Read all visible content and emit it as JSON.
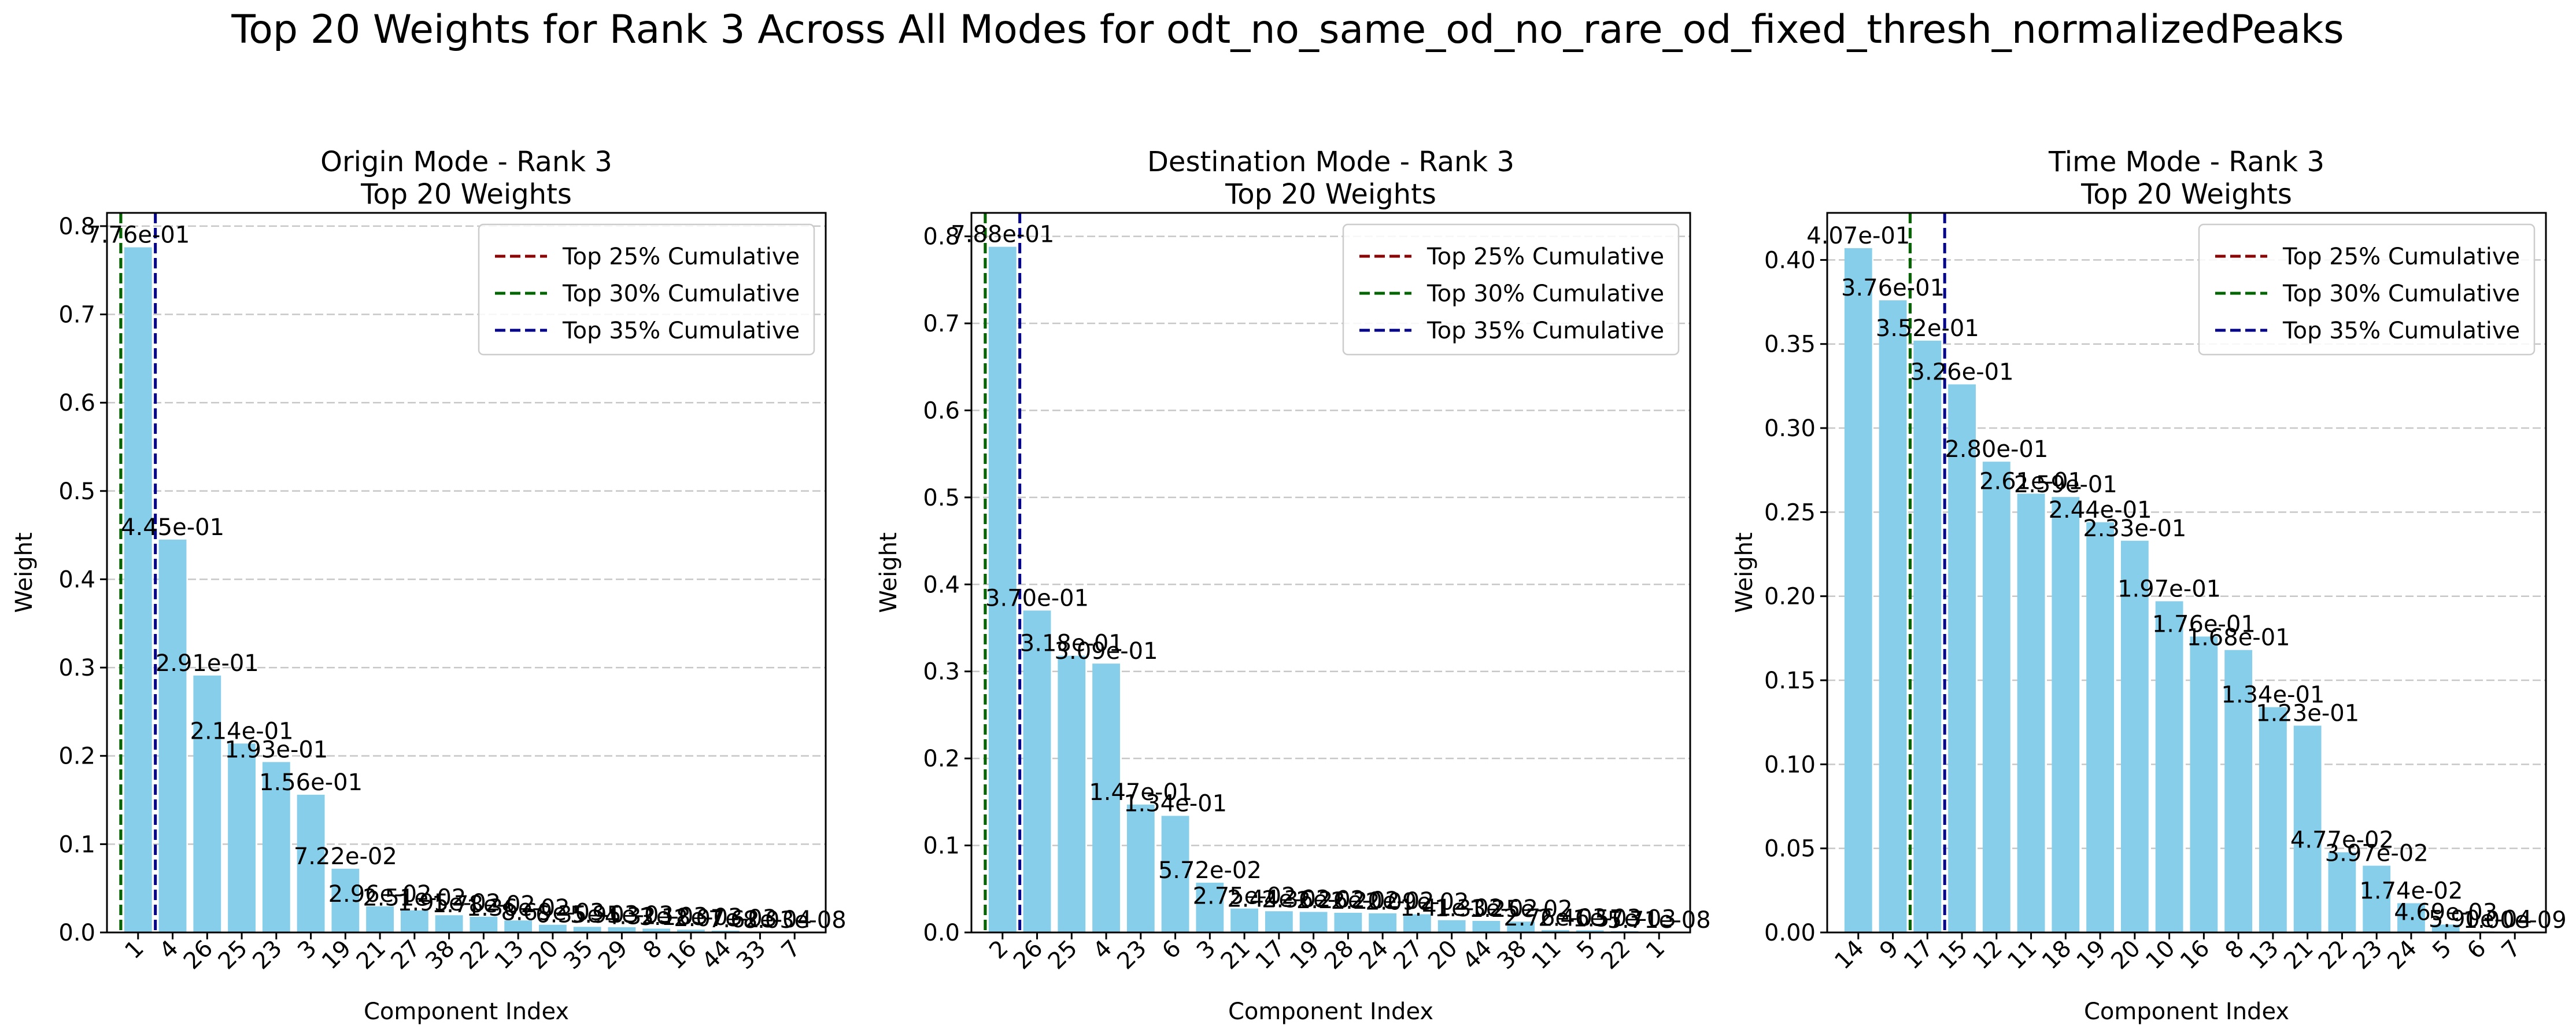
{
  "figure": {
    "suptitle": "Top 20 Weights for Rank 3 Across All Modes for odt_no_same_od_no_rare_od_fixed_thresh_normalizedPeaks"
  },
  "colors": {
    "bar": "#87CEEB",
    "grid": "#b0b0b0",
    "threshold_25": "#8b0000",
    "threshold_30": "#006400",
    "threshold_35": "#00008b"
  },
  "chart_data": [
    {
      "type": "bar",
      "title": "Origin Mode - Rank 3",
      "subtitle": "Top 20 Weights",
      "xlabel": "Component Index",
      "ylabel": "Weight",
      "categories": [
        "1",
        "4",
        "26",
        "25",
        "23",
        "3",
        "19",
        "21",
        "27",
        "38",
        "22",
        "13",
        "20",
        "35",
        "29",
        "8",
        "16",
        "44",
        "33",
        "7"
      ],
      "values": [
        0.776,
        0.445,
        0.291,
        0.214,
        0.193,
        0.156,
        0.0722,
        0.0296,
        0.0251,
        0.0195,
        0.0178,
        0.0136,
        0.00869,
        0.00635,
        0.00595,
        0.00432,
        0.00318,
        0.00207,
        0.000762,
        8.03e-08
      ],
      "value_labels": [
        "7.76e-01",
        "4.45e-01",
        "2.91e-01",
        "2.14e-01",
        "1.93e-01",
        "1.56e-01",
        "7.22e-02",
        "2.96e-02",
        "2.51e-02",
        "1.95e-02",
        "1.78e-02",
        "1.36e-02",
        "8.69e-03",
        "6.35e-03",
        "5.95e-03",
        "4.32e-03",
        "3.18e-03",
        "2.07e-03",
        "7.62e-04",
        "8.03e-08"
      ],
      "ylim": [
        0,
        0.815
      ],
      "yticks": [
        0.0,
        0.1,
        0.2,
        0.3,
        0.4,
        0.5,
        0.6,
        0.7,
        0.8
      ],
      "ytick_labels": [
        "0.0",
        "0.1",
        "0.2",
        "0.3",
        "0.4",
        "0.5",
        "0.6",
        "0.7",
        "0.8"
      ],
      "threshold_lines": [
        {
          "label": "Top 25% Cumulative",
          "index": -0.5,
          "color_key": "threshold_25"
        },
        {
          "label": "Top 30% Cumulative",
          "index": -0.5,
          "color_key": "threshold_30"
        },
        {
          "label": "Top 35% Cumulative",
          "index": 0.5,
          "color_key": "threshold_35"
        }
      ],
      "grid": "y",
      "legend": "top-right"
    },
    {
      "type": "bar",
      "title": "Destination Mode - Rank 3",
      "subtitle": "Top 20 Weights",
      "xlabel": "Component Index",
      "ylabel": "Weight",
      "categories": [
        "2",
        "26",
        "25",
        "4",
        "23",
        "6",
        "3",
        "21",
        "17",
        "19",
        "28",
        "24",
        "27",
        "20",
        "44",
        "38",
        "11",
        "5",
        "22",
        "1"
      ],
      "values": [
        0.788,
        0.37,
        0.318,
        0.309,
        0.147,
        0.134,
        0.0572,
        0.0275,
        0.0244,
        0.0236,
        0.0226,
        0.022,
        0.0209,
        0.0141,
        0.0133,
        0.0125,
        0.00276,
        0.00246,
        0.00157,
        5.71e-08
      ],
      "value_labels": [
        "7.88e-01",
        "3.70e-01",
        "3.18e-01",
        "3.09e-01",
        "1.47e-01",
        "1.34e-01",
        "5.72e-02",
        "2.75e-02",
        "2.44e-02",
        "2.36e-02",
        "2.26e-02",
        "2.20e-02",
        "2.09e-02",
        "1.41e-02",
        "1.33e-02",
        "1.25e-02",
        "2.76e-03",
        "2.46e-03",
        "1.57e-03",
        "5.71e-08"
      ],
      "ylim": [
        0,
        0.827
      ],
      "yticks": [
        0.0,
        0.1,
        0.2,
        0.3,
        0.4,
        0.5,
        0.6,
        0.7,
        0.8
      ],
      "ytick_labels": [
        "0.0",
        "0.1",
        "0.2",
        "0.3",
        "0.4",
        "0.5",
        "0.6",
        "0.7",
        "0.8"
      ],
      "threshold_lines": [
        {
          "label": "Top 25% Cumulative",
          "index": -0.5,
          "color_key": "threshold_25"
        },
        {
          "label": "Top 30% Cumulative",
          "index": -0.5,
          "color_key": "threshold_30"
        },
        {
          "label": "Top 35% Cumulative",
          "index": 0.5,
          "color_key": "threshold_35"
        }
      ],
      "grid": "y",
      "legend": "top-right"
    },
    {
      "type": "bar",
      "title": "Time Mode - Rank 3",
      "subtitle": "Top 20 Weights",
      "xlabel": "Component Index",
      "ylabel": "Weight",
      "categories": [
        "14",
        "9",
        "17",
        "15",
        "12",
        "11",
        "18",
        "19",
        "20",
        "10",
        "16",
        "8",
        "13",
        "21",
        "22",
        "23",
        "24",
        "5",
        "6",
        "7"
      ],
      "values": [
        0.407,
        0.376,
        0.352,
        0.326,
        0.28,
        0.261,
        0.259,
        0.244,
        0.233,
        0.197,
        0.176,
        0.168,
        0.134,
        0.123,
        0.0477,
        0.0397,
        0.0174,
        0.00469,
        0.00059,
        1e-09
      ],
      "value_labels": [
        "4.07e-01",
        "3.76e-01",
        "3.52e-01",
        "3.26e-01",
        "2.80e-01",
        "2.61e-01",
        "2.59e-01",
        "2.44e-01",
        "2.33e-01",
        "1.97e-01",
        "1.76e-01",
        "1.68e-01",
        "1.34e-01",
        "1.23e-01",
        "4.77e-02",
        "3.97e-02",
        "1.74e-02",
        "4.69e-03",
        "5.90e-04",
        "1.00e-09"
      ],
      "ylim": [
        0,
        0.428
      ],
      "yticks": [
        0.0,
        0.05,
        0.1,
        0.15,
        0.2,
        0.25,
        0.3,
        0.35,
        0.4
      ],
      "ytick_labels": [
        "0.00",
        "0.05",
        "0.10",
        "0.15",
        "0.20",
        "0.25",
        "0.30",
        "0.35",
        "0.40"
      ],
      "threshold_lines": [
        {
          "label": "Top 25% Cumulative",
          "index": 1.5,
          "color_key": "threshold_25"
        },
        {
          "label": "Top 30% Cumulative",
          "index": 1.5,
          "color_key": "threshold_30"
        },
        {
          "label": "Top 35% Cumulative",
          "index": 2.5,
          "color_key": "threshold_35"
        }
      ],
      "grid": "y",
      "legend": "top-right"
    }
  ]
}
